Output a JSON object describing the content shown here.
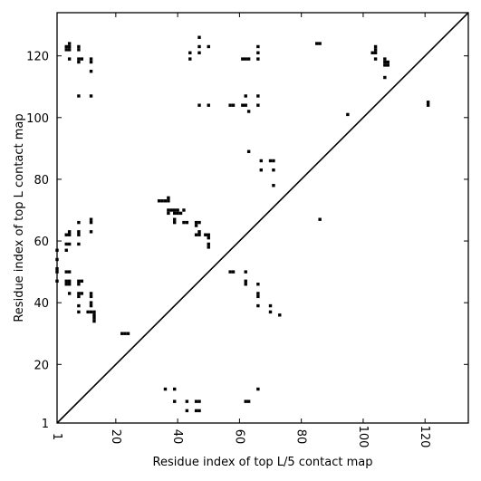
{
  "chart_data": {
    "type": "scatter",
    "title": "",
    "xlabel": "Residue index of top L/5 contact map",
    "ylabel": "Residue index of top L contact map",
    "xlim": [
      1,
      134
    ],
    "ylim": [
      1,
      134
    ],
    "x_ticks": [
      1,
      20,
      40,
      60,
      80,
      100,
      120
    ],
    "x_tick_labels": [
      "1",
      "20",
      "40",
      "60",
      "80",
      "100",
      "120"
    ],
    "y_ticks": [
      1,
      20,
      40,
      60,
      80,
      100,
      120
    ],
    "y_tick_labels": [
      "1",
      "20",
      "40",
      "60",
      "80",
      "100",
      "120"
    ],
    "diagonal": true,
    "grid": false,
    "marker_color": "#000000",
    "upper_points": [
      [
        4,
        122
      ],
      [
        4,
        123
      ],
      [
        5,
        122
      ],
      [
        5,
        123
      ],
      [
        5,
        124
      ],
      [
        5,
        119
      ],
      [
        8,
        122
      ],
      [
        8,
        123
      ],
      [
        8,
        119
      ],
      [
        8,
        118
      ],
      [
        9,
        119
      ],
      [
        12,
        118
      ],
      [
        12,
        119
      ],
      [
        12,
        115
      ],
      [
        47,
        126
      ],
      [
        47,
        123
      ],
      [
        47,
        121
      ],
      [
        44,
        121
      ],
      [
        44,
        119
      ],
      [
        50,
        123
      ],
      [
        61,
        119
      ],
      [
        62,
        119
      ],
      [
        63,
        119
      ],
      [
        66,
        119
      ],
      [
        66,
        121
      ],
      [
        66,
        123
      ],
      [
        85,
        124
      ],
      [
        86,
        124
      ],
      [
        104,
        123
      ],
      [
        104,
        122
      ],
      [
        103,
        121
      ],
      [
        104,
        121
      ],
      [
        104,
        119
      ],
      [
        107,
        119
      ],
      [
        107,
        118
      ],
      [
        108,
        118
      ],
      [
        107,
        117
      ],
      [
        108,
        117
      ],
      [
        107,
        113
      ],
      [
        8,
        107
      ],
      [
        12,
        107
      ],
      [
        47,
        104
      ],
      [
        50,
        104
      ],
      [
        57,
        104
      ],
      [
        58,
        104
      ],
      [
        61,
        104
      ],
      [
        62,
        104
      ],
      [
        62,
        107
      ],
      [
        63,
        102
      ],
      [
        66,
        104
      ],
      [
        66,
        107
      ],
      [
        95,
        101
      ],
      [
        121,
        104
      ],
      [
        121,
        105
      ],
      [
        63,
        89
      ],
      [
        67,
        86
      ],
      [
        70,
        86
      ],
      [
        71,
        86
      ],
      [
        67,
        83
      ],
      [
        71,
        83
      ],
      [
        71,
        78
      ],
      [
        86,
        67
      ]
    ],
    "lower_points": [
      [
        34,
        73
      ],
      [
        35,
        73
      ],
      [
        36,
        73
      ],
      [
        37,
        73
      ],
      [
        37,
        74
      ],
      [
        37,
        70
      ],
      [
        38,
        70
      ],
      [
        39,
        70
      ],
      [
        40,
        70
      ],
      [
        37,
        69
      ],
      [
        39,
        69
      ],
      [
        40,
        69
      ],
      [
        39,
        67
      ],
      [
        39,
        66
      ],
      [
        41,
        69
      ],
      [
        42,
        70
      ],
      [
        42,
        66
      ],
      [
        43,
        66
      ],
      [
        46,
        66
      ],
      [
        47,
        66
      ],
      [
        46,
        65
      ],
      [
        46,
        62
      ],
      [
        47,
        62
      ],
      [
        47,
        63
      ],
      [
        49,
        62
      ],
      [
        50,
        62
      ],
      [
        50,
        61
      ],
      [
        50,
        59
      ],
      [
        50,
        58
      ],
      [
        8,
        66
      ],
      [
        12,
        67
      ],
      [
        12,
        66
      ],
      [
        12,
        63
      ],
      [
        4,
        62
      ],
      [
        5,
        62
      ],
      [
        5,
        63
      ],
      [
        8,
        62
      ],
      [
        8,
        63
      ],
      [
        4,
        59
      ],
      [
        5,
        59
      ],
      [
        8,
        59
      ],
      [
        1,
        57
      ],
      [
        4,
        57
      ],
      [
        1,
        54
      ],
      [
        1,
        51
      ],
      [
        1,
        50
      ],
      [
        1,
        47
      ],
      [
        4,
        50
      ],
      [
        5,
        50
      ],
      [
        4,
        47
      ],
      [
        5,
        47
      ],
      [
        4,
        46
      ],
      [
        5,
        46
      ],
      [
        8,
        47
      ],
      [
        9,
        47
      ],
      [
        8,
        46
      ],
      [
        5,
        43
      ],
      [
        8,
        43
      ],
      [
        9,
        43
      ],
      [
        8,
        42
      ],
      [
        12,
        43
      ],
      [
        12,
        42
      ],
      [
        8,
        39
      ],
      [
        12,
        40
      ],
      [
        12,
        39
      ],
      [
        8,
        37
      ],
      [
        11,
        37
      ],
      [
        12,
        37
      ],
      [
        13,
        37
      ],
      [
        13,
        36
      ],
      [
        13,
        35
      ],
      [
        13,
        34
      ],
      [
        22,
        30
      ],
      [
        23,
        30
      ],
      [
        24,
        30
      ],
      [
        57,
        50
      ],
      [
        58,
        50
      ],
      [
        62,
        50
      ],
      [
        62,
        47
      ],
      [
        62,
        46
      ],
      [
        66,
        46
      ],
      [
        66,
        43
      ],
      [
        66,
        42
      ],
      [
        66,
        39
      ],
      [
        70,
        39
      ],
      [
        70,
        37
      ],
      [
        73,
        36
      ],
      [
        36,
        12
      ],
      [
        39,
        12
      ],
      [
        66,
        12
      ],
      [
        39,
        8
      ],
      [
        43,
        8
      ],
      [
        46,
        8
      ],
      [
        47,
        8
      ],
      [
        62,
        8
      ],
      [
        63,
        8
      ],
      [
        43,
        5
      ],
      [
        46,
        5
      ],
      [
        47,
        5
      ]
    ]
  }
}
